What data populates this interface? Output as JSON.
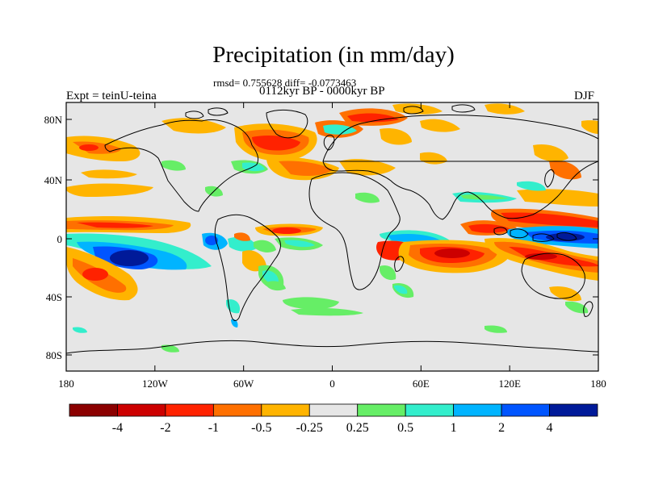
{
  "title": "Precipitation (in mm/day)",
  "stats_line": "rmsd= 0.755628 diff= -0.0773463",
  "period_line": "0112kyr BP - 0000kyr BP",
  "experiment_label": "Expt = teinU-teina",
  "season_label": "DJF",
  "map": {
    "background_color": "#e6e6e6",
    "lat_ticks": [
      "80N",
      "40N",
      "0",
      "40S",
      "80S"
    ],
    "lon_ticks": [
      "180",
      "120W",
      "60W",
      "0",
      "60E",
      "120E",
      "180"
    ]
  },
  "colorbar": {
    "colors": [
      "#8b0000",
      "#cc0000",
      "#ff2200",
      "#ff7000",
      "#ffb400",
      "#e6e6e6",
      "#66ee66",
      "#33eecc",
      "#00b4ff",
      "#0055ff",
      "#001a99"
    ],
    "labels": [
      "-4",
      "-2",
      "-1",
      "-0.5",
      "-0.25",
      "0.25",
      "0.5",
      "1",
      "2",
      "4"
    ]
  }
}
